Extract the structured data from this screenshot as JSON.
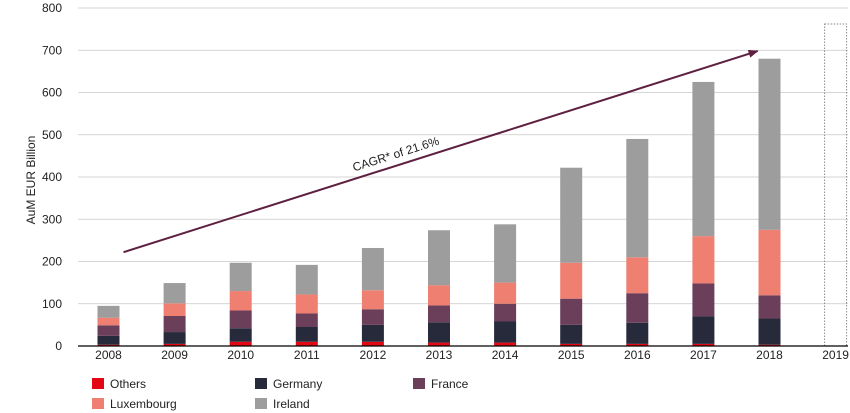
{
  "chart_data": {
    "type": "bar",
    "stacked": true,
    "ylabel": "AuM EUR Billion",
    "ylim": [
      0,
      800
    ],
    "yticks": [
      0,
      100,
      200,
      300,
      400,
      500,
      600,
      700,
      800
    ],
    "grid": true,
    "categories": [
      "2008",
      "2009",
      "2010",
      "2011",
      "2012",
      "2013",
      "2014",
      "2015",
      "2016",
      "2017",
      "2018",
      "2019"
    ],
    "series": [
      {
        "name": "Others",
        "color": "#e30613",
        "values": [
          3,
          5,
          10,
          10,
          10,
          8,
          8,
          5,
          5,
          5,
          3,
          null
        ]
      },
      {
        "name": "Germany",
        "color": "#262a3b",
        "values": [
          21,
          28,
          32,
          35,
          40,
          48,
          50,
          45,
          50,
          65,
          62,
          null
        ]
      },
      {
        "name": "France",
        "color": "#6b3f5a",
        "values": [
          25,
          38,
          42,
          32,
          37,
          40,
          42,
          62,
          70,
          78,
          55,
          null
        ]
      },
      {
        "name": "Luxembourg",
        "color": "#ee7f71",
        "values": [
          18,
          30,
          46,
          45,
          45,
          48,
          50,
          85,
          85,
          112,
          155,
          null
        ]
      },
      {
        "name": "Ireland",
        "color": "#9d9d9d",
        "values": [
          28,
          48,
          67,
          70,
          100,
          130,
          138,
          225,
          280,
          365,
          405,
          null
        ]
      }
    ],
    "placeholder_category": "2019",
    "trend": {
      "label": "CAGR* of 21.6%",
      "from": [
        "2008",
        222
      ],
      "to": [
        "2019",
        698
      ],
      "color": "#5e2040"
    },
    "legend": {
      "placement": "bottom-left",
      "order": [
        "Others",
        "Germany",
        "France",
        "Luxembourg",
        "Ireland"
      ]
    }
  }
}
